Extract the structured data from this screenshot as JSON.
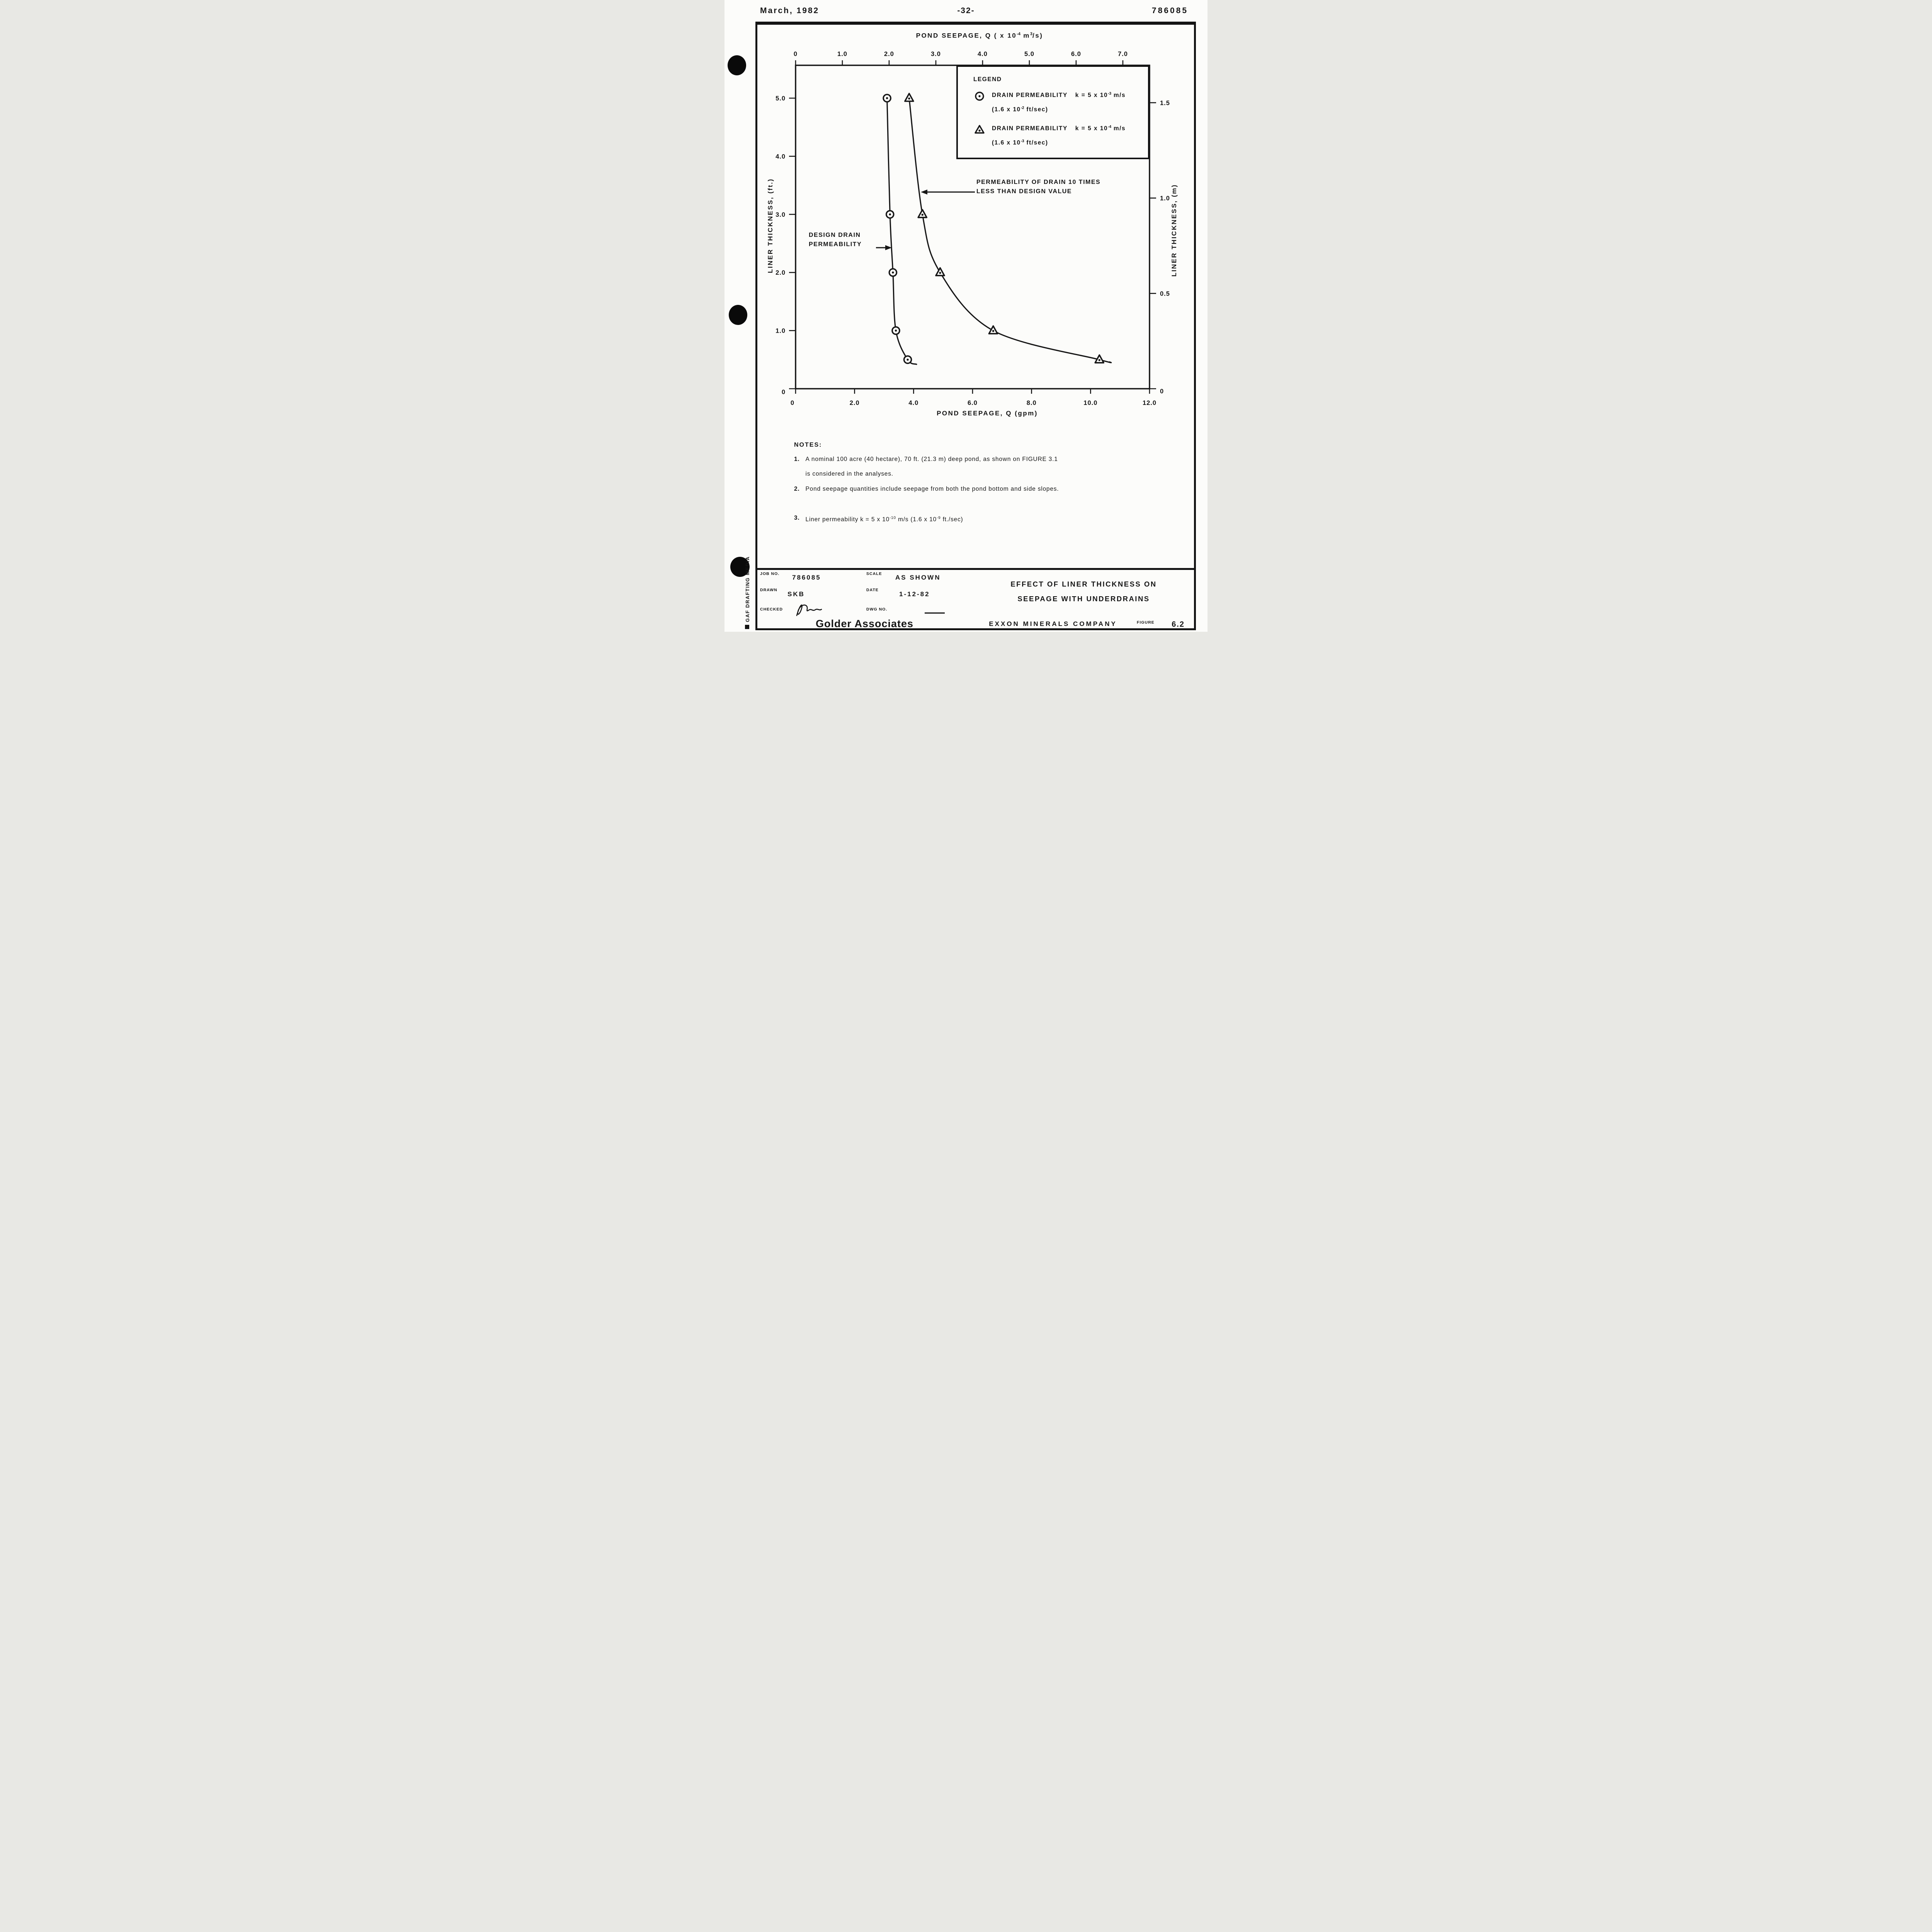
{
  "page_header": {
    "date": "March, 1982",
    "page_number": "-32-",
    "doc_number": "786085"
  },
  "chart_data": {
    "type": "line",
    "x_top": {
      "title_pre": "POND SEEPAGE, Q ( x 10",
      "title_exp": "-4",
      "title_mid": " m",
      "title_exp2": "3",
      "title_post": "/s)",
      "ticks": [
        0,
        1,
        2,
        3,
        4,
        5,
        6,
        7
      ],
      "tick_labels": [
        "0",
        "1.0",
        "2.0",
        "3.0",
        "4.0",
        "5.0",
        "6.0",
        "7.0"
      ],
      "gpm_per_unit": 1.585
    },
    "x_bottom": {
      "title": "POND SEEPAGE, Q (gpm)",
      "ticks": [
        0,
        2,
        4,
        6,
        8,
        10,
        12
      ],
      "tick_labels": [
        "0",
        "2.0",
        "4.0",
        "6.0",
        "8.0",
        "10.0",
        "12.0"
      ],
      "range": [
        0,
        12
      ]
    },
    "y_left": {
      "title": "LINER THICKNESS, (ft.)",
      "ticks": [
        0,
        1,
        2,
        3,
        4,
        5
      ],
      "tick_labels": [
        "0",
        "1.0",
        "2.0",
        "3.0",
        "4.0",
        "5.0"
      ],
      "range": [
        0,
        5.57
      ]
    },
    "y_right": {
      "title": "LINER THICKNESS, (m)",
      "ticks": [
        0,
        0.5,
        1.0,
        1.5
      ],
      "tick_labels": [
        "0",
        "0.5",
        "1.0",
        "1.5"
      ],
      "ft_per_m": 3.2808
    },
    "series": [
      {
        "name": "Drain permeability k = 5 x 10^-3 m/s (design)",
        "marker": "circle-dot",
        "points": [
          [
            3.1,
            5.0
          ],
          [
            3.2,
            3.0
          ],
          [
            3.3,
            2.0
          ],
          [
            3.4,
            1.0
          ],
          [
            3.8,
            0.5
          ]
        ],
        "tail": [
          4.1,
          0.42
        ]
      },
      {
        "name": "Drain permeability k = 5 x 10^-4 m/s (10x less)",
        "marker": "triangle-dot",
        "points": [
          [
            3.85,
            5.0
          ],
          [
            4.3,
            3.0
          ],
          [
            4.9,
            2.0
          ],
          [
            6.7,
            1.0
          ],
          [
            10.3,
            0.5
          ]
        ],
        "tail": [
          10.65,
          0.46
        ]
      }
    ],
    "grid": false,
    "legend_position": "top-right"
  },
  "legend": {
    "title": "LEGEND",
    "items": [
      {
        "marker": "circle-dot",
        "label": "DRAIN PERMEABILITY",
        "k_base": "k = 5 x 10",
        "k_exp": "-3",
        "k_unit": " m/s",
        "alt_base": "(1.6 x 10",
        "alt_exp": "-2",
        "alt_unit": " ft/sec)"
      },
      {
        "marker": "triangle-dot",
        "label": "DRAIN PERMEABILITY",
        "k_base": "k = 5 x 10",
        "k_exp": "-4",
        "k_unit": " m/s",
        "alt_base": "(1.6 x 10",
        "alt_exp": "-3",
        "alt_unit": " ft/sec)"
      }
    ]
  },
  "annotations": {
    "drain10_line1": "PERMEABILITY OF DRAIN 10 TIMES",
    "drain10_line2": "LESS THAN DESIGN VALUE",
    "design_line1": "DESIGN DRAIN",
    "design_line2": "PERMEABILITY"
  },
  "notes": {
    "heading": "NOTES:",
    "n1_num": "1.",
    "n1_line1": "A nominal 100 acre (40 hectare), 70 ft. (21.3 m) deep pond, as shown on FIGURE 3.1",
    "n1_line2": "is considered in the analyses.",
    "n2_num": "2.",
    "n2_text": "Pond seepage quantities include seepage from both the pond bottom and side slopes.",
    "n3_num": "3.",
    "n3_base": "Liner permeability k = 5 x 10",
    "n3_exp": "-10",
    "n3_mid": " m/s  (1.6 x 10",
    "n3_exp2": "-9",
    "n3_end": " ft./sec)"
  },
  "title_block": {
    "job_label": "JOB NO.",
    "job_value": "786085",
    "scale_label": "SCALE",
    "scale_value": "AS SHOWN",
    "drawn_label": "DRAWN",
    "drawn_value": "SKB",
    "date_label": "DATE",
    "date_value": "1-12-82",
    "checked_label": "CHECKED",
    "dwg_label": "DWG NO.",
    "firm": "Golder Associates",
    "title_line1": "EFFECT OF LINER THICKNESS ON",
    "title_line2": "SEEPAGE WITH UNDERDRAINS",
    "client": "EXXON MINERALS COMPANY",
    "figure_label": "FIGURE",
    "figure_value": "6.2"
  },
  "side_text": "GAF DRAFTING MEDIA"
}
